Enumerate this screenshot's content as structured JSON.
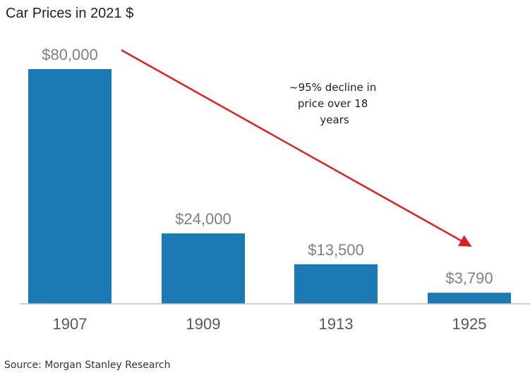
{
  "chart_data": {
    "type": "bar",
    "title": "Car Prices in 2021 $",
    "categories": [
      "1907",
      "1909",
      "1913",
      "1925"
    ],
    "values": [
      80000,
      24000,
      13500,
      3790
    ],
    "value_labels": [
      "$80,000",
      "$24,000",
      "$13,500",
      "$3,790"
    ],
    "xlabel": "",
    "ylabel": "",
    "ylim": [
      0,
      80000
    ],
    "grid": false,
    "annotation": {
      "lines": [
        "~95% decline in",
        "price over 18",
        "years"
      ],
      "arrow": "from 1907 to 1925"
    },
    "source": "Source: Morgan Stanley Research"
  },
  "colors": {
    "bar": "#1a7bb4",
    "arrow": "#d92121",
    "axis": "#bfbfbf"
  }
}
